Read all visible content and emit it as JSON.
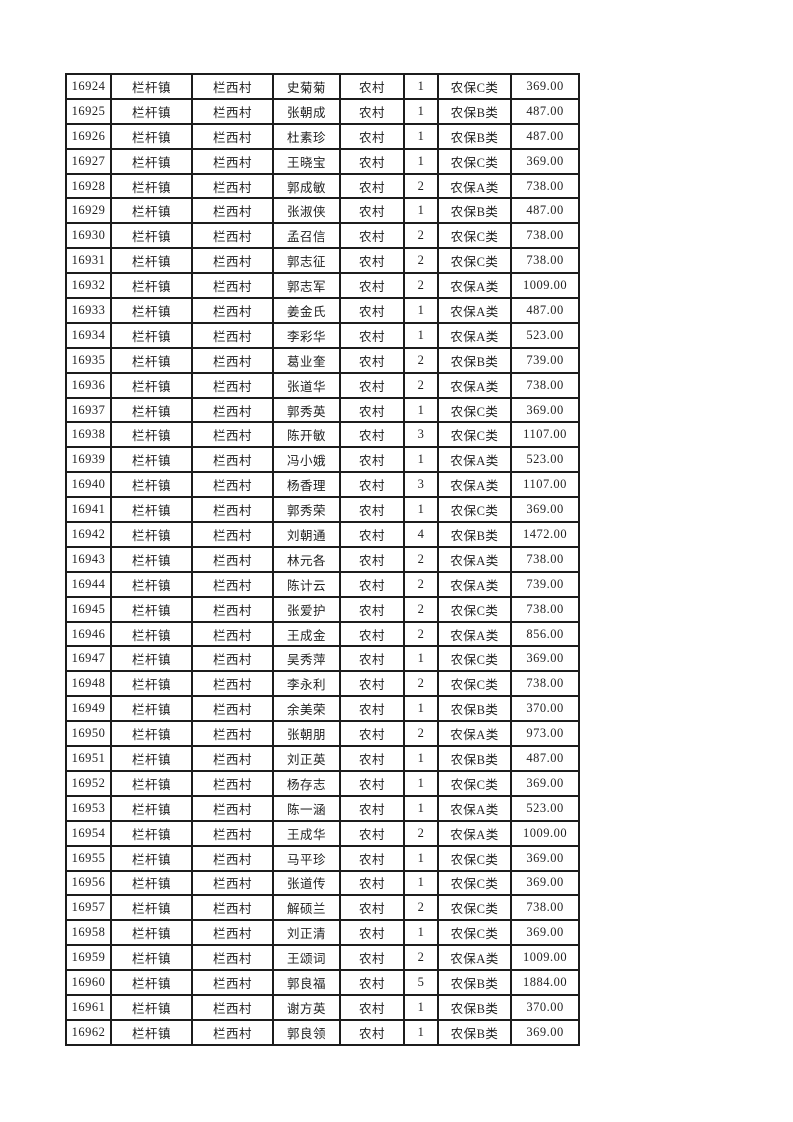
{
  "page": {
    "background": "#ffffff",
    "text_color": "#1f1f1f",
    "border_color": "#1c1c1c"
  },
  "table": {
    "column_keys": [
      "id",
      "town",
      "village",
      "name",
      "type",
      "count",
      "category",
      "amount"
    ],
    "rows": [
      [
        "16924",
        "栏杆镇",
        "栏西村",
        "史菊菊",
        "农村",
        "1",
        "农保C类",
        "369.00"
      ],
      [
        "16925",
        "栏杆镇",
        "栏西村",
        "张朝成",
        "农村",
        "1",
        "农保B类",
        "487.00"
      ],
      [
        "16926",
        "栏杆镇",
        "栏西村",
        "杜素珍",
        "农村",
        "1",
        "农保B类",
        "487.00"
      ],
      [
        "16927",
        "栏杆镇",
        "栏西村",
        "王晓宝",
        "农村",
        "1",
        "农保C类",
        "369.00"
      ],
      [
        "16928",
        "栏杆镇",
        "栏西村",
        "郭成敏",
        "农村",
        "2",
        "农保A类",
        "738.00"
      ],
      [
        "16929",
        "栏杆镇",
        "栏西村",
        "张淑侠",
        "农村",
        "1",
        "农保B类",
        "487.00"
      ],
      [
        "16930",
        "栏杆镇",
        "栏西村",
        "孟召信",
        "农村",
        "2",
        "农保C类",
        "738.00"
      ],
      [
        "16931",
        "栏杆镇",
        "栏西村",
        "郭志征",
        "农村",
        "2",
        "农保C类",
        "738.00"
      ],
      [
        "16932",
        "栏杆镇",
        "栏西村",
        "郭志军",
        "农村",
        "2",
        "农保A类",
        "1009.00"
      ],
      [
        "16933",
        "栏杆镇",
        "栏西村",
        "姜金氏",
        "农村",
        "1",
        "农保A类",
        "487.00"
      ],
      [
        "16934",
        "栏杆镇",
        "栏西村",
        "李彩华",
        "农村",
        "1",
        "农保A类",
        "523.00"
      ],
      [
        "16935",
        "栏杆镇",
        "栏西村",
        "葛业奎",
        "农村",
        "2",
        "农保B类",
        "739.00"
      ],
      [
        "16936",
        "栏杆镇",
        "栏西村",
        "张道华",
        "农村",
        "2",
        "农保A类",
        "738.00"
      ],
      [
        "16937",
        "栏杆镇",
        "栏西村",
        "郭秀英",
        "农村",
        "1",
        "农保C类",
        "369.00"
      ],
      [
        "16938",
        "栏杆镇",
        "栏西村",
        "陈开敏",
        "农村",
        "3",
        "农保C类",
        "1107.00"
      ],
      [
        "16939",
        "栏杆镇",
        "栏西村",
        "冯小娥",
        "农村",
        "1",
        "农保A类",
        "523.00"
      ],
      [
        "16940",
        "栏杆镇",
        "栏西村",
        "杨香理",
        "农村",
        "3",
        "农保A类",
        "1107.00"
      ],
      [
        "16941",
        "栏杆镇",
        "栏西村",
        "郭秀荣",
        "农村",
        "1",
        "农保C类",
        "369.00"
      ],
      [
        "16942",
        "栏杆镇",
        "栏西村",
        "刘朝通",
        "农村",
        "4",
        "农保B类",
        "1472.00"
      ],
      [
        "16943",
        "栏杆镇",
        "栏西村",
        "林元各",
        "农村",
        "2",
        "农保A类",
        "738.00"
      ],
      [
        "16944",
        "栏杆镇",
        "栏西村",
        "陈计云",
        "农村",
        "2",
        "农保A类",
        "739.00"
      ],
      [
        "16945",
        "栏杆镇",
        "栏西村",
        "张爱护",
        "农村",
        "2",
        "农保C类",
        "738.00"
      ],
      [
        "16946",
        "栏杆镇",
        "栏西村",
        "王成金",
        "农村",
        "2",
        "农保A类",
        "856.00"
      ],
      [
        "16947",
        "栏杆镇",
        "栏西村",
        "吴秀萍",
        "农村",
        "1",
        "农保C类",
        "369.00"
      ],
      [
        "16948",
        "栏杆镇",
        "栏西村",
        "李永利",
        "农村",
        "2",
        "农保C类",
        "738.00"
      ],
      [
        "16949",
        "栏杆镇",
        "栏西村",
        "余美荣",
        "农村",
        "1",
        "农保B类",
        "370.00"
      ],
      [
        "16950",
        "栏杆镇",
        "栏西村",
        "张朝朋",
        "农村",
        "2",
        "农保A类",
        "973.00"
      ],
      [
        "16951",
        "栏杆镇",
        "栏西村",
        "刘正英",
        "农村",
        "1",
        "农保B类",
        "487.00"
      ],
      [
        "16952",
        "栏杆镇",
        "栏西村",
        "杨存志",
        "农村",
        "1",
        "农保C类",
        "369.00"
      ],
      [
        "16953",
        "栏杆镇",
        "栏西村",
        "陈一涵",
        "农村",
        "1",
        "农保A类",
        "523.00"
      ],
      [
        "16954",
        "栏杆镇",
        "栏西村",
        "王成华",
        "农村",
        "2",
        "农保A类",
        "1009.00"
      ],
      [
        "16955",
        "栏杆镇",
        "栏西村",
        "马平珍",
        "农村",
        "1",
        "农保C类",
        "369.00"
      ],
      [
        "16956",
        "栏杆镇",
        "栏西村",
        "张道传",
        "农村",
        "1",
        "农保C类",
        "369.00"
      ],
      [
        "16957",
        "栏杆镇",
        "栏西村",
        "解硕兰",
        "农村",
        "2",
        "农保C类",
        "738.00"
      ],
      [
        "16958",
        "栏杆镇",
        "栏西村",
        "刘正清",
        "农村",
        "1",
        "农保C类",
        "369.00"
      ],
      [
        "16959",
        "栏杆镇",
        "栏西村",
        "王颂词",
        "农村",
        "2",
        "农保A类",
        "1009.00"
      ],
      [
        "16960",
        "栏杆镇",
        "栏西村",
        "郭良福",
        "农村",
        "5",
        "农保B类",
        "1884.00"
      ],
      [
        "16961",
        "栏杆镇",
        "栏西村",
        "谢方英",
        "农村",
        "1",
        "农保B类",
        "370.00"
      ],
      [
        "16962",
        "栏杆镇",
        "栏西村",
        "郭良领",
        "农村",
        "1",
        "农保B类",
        "369.00"
      ]
    ]
  }
}
